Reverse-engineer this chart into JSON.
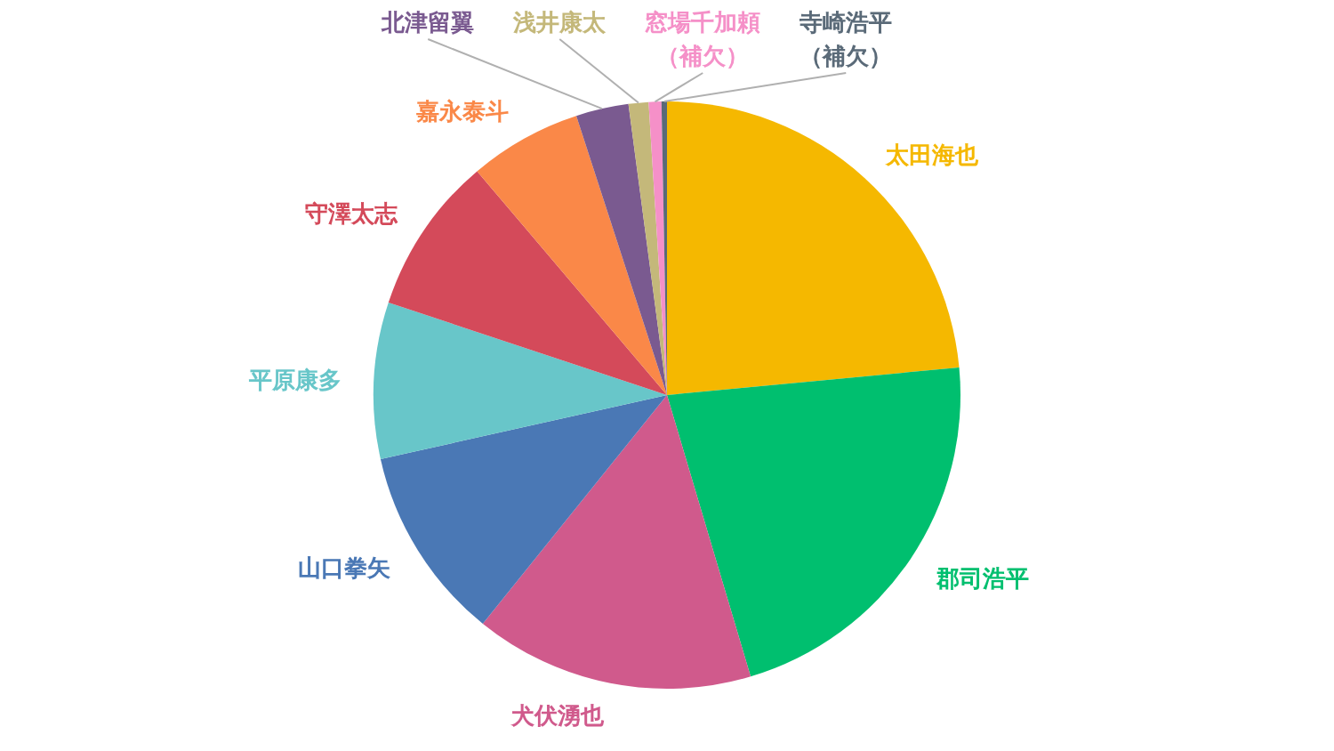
{
  "chart_data": {
    "type": "pie",
    "categories": [
      "太田海也",
      "郡司浩平",
      "犬伏湧也",
      "山口拳矢",
      "平原康多",
      "守澤太志",
      "嘉永泰斗",
      "北津留翼",
      "浅井康太",
      "窓場千加頼（補欠）",
      "寺崎浩平（補欠）"
    ],
    "values": [
      23.5,
      21.9,
      15.4,
      10.7,
      8.6,
      8.7,
      6.2,
      2.9,
      1.1,
      0.7,
      0.3
    ],
    "colors": [
      "#f5b800",
      "#00bf6f",
      "#d05a8c",
      "#4a78b5",
      "#68c6c9",
      "#d44a5a",
      "#fa8848",
      "#7a5a90",
      "#c4b87a",
      "#f590c8",
      "#5a6a78"
    ]
  }
}
